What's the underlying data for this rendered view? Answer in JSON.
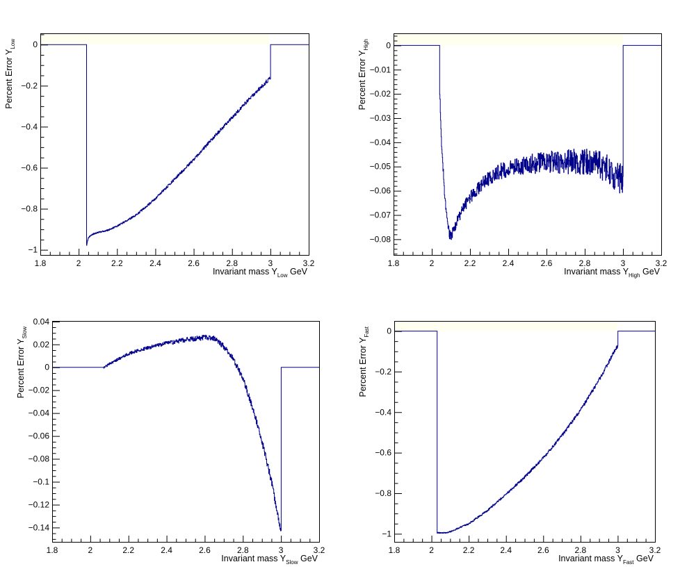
{
  "page": {
    "background": "#ffffff"
  },
  "style": {
    "line_color": "#00008b",
    "frame_color": "#000000",
    "stat_box_color": "#fffff0"
  },
  "chart_data": [
    {
      "type": "line",
      "xlabel": {
        "main": "Invariant mass Y",
        "sub": "Low",
        "unit": " GeV"
      },
      "ylabel": {
        "main": "Percent Error Y",
        "sub": "Low"
      },
      "xlim": [
        1.8,
        3.2
      ],
      "ylim": [
        -1.025,
        0.055
      ],
      "xticks": [
        1.8,
        2,
        2.2,
        2.4,
        2.6,
        2.8,
        3,
        3.2
      ],
      "xtick_labels": [
        "1.8",
        "2",
        "2.2",
        "2.4",
        "2.6",
        "2.8",
        "3",
        "3.2"
      ],
      "yticks": [
        0,
        -0.2,
        -0.4,
        -0.6,
        -0.8,
        -1
      ],
      "ytick_labels": [
        "0",
        "−0.2",
        "−0.4",
        "−0.6",
        "−0.8",
        "−1"
      ],
      "ymajor_step": 0.2,
      "xminor": 0.05,
      "yminor": 0.05,
      "noise_amplitude": 0.006,
      "series": [
        {
          "x": [
            1.8,
            2.04,
            2.04,
            2.05,
            2.07,
            2.1,
            2.15,
            2.2,
            2.3,
            2.4,
            2.5,
            2.6,
            2.7,
            2.8,
            2.9,
            3.0,
            3.0,
            3.2
          ],
          "y": [
            0,
            0,
            -0.98,
            -0.94,
            -0.925,
            -0.915,
            -0.905,
            -0.885,
            -0.83,
            -0.75,
            -0.655,
            -0.56,
            -0.455,
            -0.355,
            -0.255,
            -0.16,
            0,
            0
          ]
        }
      ]
    },
    {
      "type": "line",
      "xlabel": {
        "main": "Invariant mass Y",
        "sub": "High",
        "unit": " GeV"
      },
      "ylabel": {
        "main": "Percent Error Y",
        "sub": "High"
      },
      "xlim": [
        1.8,
        3.2
      ],
      "ylim": [
        -0.0865,
        0.005
      ],
      "xticks": [
        1.8,
        2,
        2.2,
        2.4,
        2.6,
        2.8,
        3,
        3.2
      ],
      "xtick_labels": [
        "1.8",
        "2",
        "2.2",
        "2.4",
        "2.6",
        "2.8",
        "3",
        "3.2"
      ],
      "yticks": [
        0,
        -0.01,
        -0.02,
        -0.03,
        -0.04,
        -0.05,
        -0.06,
        -0.07,
        -0.08
      ],
      "ytick_labels": [
        "0",
        "−0.01",
        "−0.02",
        "−0.03",
        "−0.04",
        "−0.05",
        "−0.06",
        "−0.07",
        "−0.08"
      ],
      "ymajor_step": 0.01,
      "xminor": 0.05,
      "yminor": 0.002,
      "noise_amplitude": 0.004,
      "series": [
        {
          "x": [
            1.8,
            2.04,
            2.04,
            2.05,
            2.07,
            2.09,
            2.1,
            2.13,
            2.18,
            2.25,
            2.35,
            2.5,
            2.65,
            2.8,
            2.9,
            3.0,
            3.0,
            3.2
          ],
          "y": [
            0,
            0,
            -0.016,
            -0.04,
            -0.065,
            -0.078,
            -0.079,
            -0.073,
            -0.065,
            -0.058,
            -0.052,
            -0.049,
            -0.048,
            -0.048,
            -0.05,
            -0.056,
            0,
            0
          ]
        }
      ]
    },
    {
      "type": "line",
      "xlabel": {
        "main": "Invariant mass Y",
        "sub": "Slow",
        "unit": " GeV"
      },
      "ylabel": {
        "main": "Percent Error Y",
        "sub": "Slow"
      },
      "xlim": [
        1.8,
        3.2
      ],
      "ylim": [
        -0.1525,
        0.0405
      ],
      "xticks": [
        1.8,
        2,
        2.2,
        2.4,
        2.6,
        2.8,
        3,
        3.2
      ],
      "xtick_labels": [
        "1.8",
        "2",
        "2.2",
        "2.4",
        "2.6",
        "2.8",
        "3",
        "3.2"
      ],
      "yticks": [
        0.04,
        0.02,
        0,
        -0.02,
        -0.04,
        -0.06,
        -0.08,
        -0.1,
        -0.12,
        -0.14
      ],
      "ytick_labels": [
        "0.04",
        "0.02",
        "0",
        "−0.02",
        "−0.04",
        "−0.06",
        "−0.08",
        "−0.1",
        "−0.12",
        "−0.14"
      ],
      "ymajor_step": 0.02,
      "xminor": 0.05,
      "yminor": 0.005,
      "noise_amplitude": 0.002,
      "series": [
        {
          "x": [
            1.8,
            2.07,
            2.1,
            2.2,
            2.3,
            2.4,
            2.5,
            2.6,
            2.65,
            2.7,
            2.75,
            2.8,
            2.85,
            2.9,
            2.95,
            3.0,
            3.0,
            3.2
          ],
          "y": [
            0,
            0,
            0.003,
            0.012,
            0.017,
            0.021,
            0.024,
            0.026,
            0.025,
            0.018,
            0.007,
            -0.01,
            -0.035,
            -0.065,
            -0.1,
            -0.145,
            0,
            0
          ]
        }
      ]
    },
    {
      "type": "line",
      "xlabel": {
        "main": "Invariant mass Y",
        "sub": "Fast",
        "unit": " GeV"
      },
      "ylabel": {
        "main": "Percent Error Y",
        "sub": "Fast"
      },
      "xlim": [
        1.8,
        3.2
      ],
      "ylim": [
        -1.04,
        0.05
      ],
      "xticks": [
        1.8,
        2,
        2.2,
        2.4,
        2.6,
        2.8,
        3,
        3.2
      ],
      "xtick_labels": [
        "1.8",
        "2",
        "2.2",
        "2.4",
        "2.6",
        "2.8",
        "3",
        "3.2"
      ],
      "yticks": [
        0,
        -0.2,
        -0.4,
        -0.6,
        -0.8,
        -1
      ],
      "ytick_labels": [
        "0",
        "−0.2",
        "−0.4",
        "−0.6",
        "−0.8",
        "−1"
      ],
      "ymajor_step": 0.2,
      "xminor": 0.05,
      "yminor": 0.05,
      "noise_amplitude": 0.006,
      "series": [
        {
          "x": [
            1.8,
            2.03,
            2.03,
            2.08,
            2.1,
            2.2,
            2.3,
            2.4,
            2.5,
            2.6,
            2.7,
            2.8,
            2.9,
            3.0,
            3.0,
            3.2
          ],
          "y": [
            0,
            0,
            -0.995,
            -0.995,
            -0.99,
            -0.95,
            -0.885,
            -0.805,
            -0.72,
            -0.625,
            -0.515,
            -0.39,
            -0.24,
            -0.07,
            0,
            0
          ]
        }
      ]
    }
  ]
}
